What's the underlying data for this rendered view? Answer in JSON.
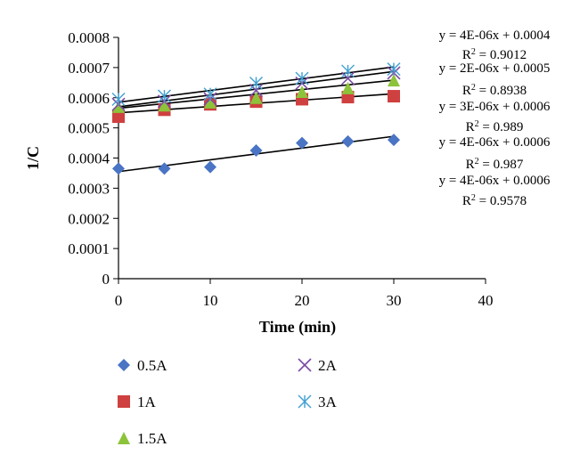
{
  "chart_data": {
    "type": "scatter",
    "xlabel": "Time (min)",
    "ylabel": "1/C",
    "xlim": [
      0,
      40
    ],
    "ylim": [
      0,
      0.0008
    ],
    "x_ticks": [
      "0",
      "10",
      "20",
      "30",
      "40"
    ],
    "y_ticks": [
      "0",
      "0.0001",
      "0.0002",
      "0.0003",
      "0.0004",
      "0.0005",
      "0.0006",
      "0.0007",
      "0.0008"
    ],
    "grid": false,
    "legend_position": "bottom",
    "x": [
      0,
      5,
      10,
      15,
      20,
      25,
      30
    ],
    "series": [
      {
        "name": "0.5A",
        "marker": "diamond",
        "color": "#4a74c4",
        "values": [
          0.000365,
          0.000365,
          0.00037,
          0.000425,
          0.00045,
          0.000455,
          0.00046
        ],
        "trendline": {
          "intercept": 0.000355,
          "slope": 3.9e-06
        }
      },
      {
        "name": "1A",
        "marker": "square",
        "color": "#cf4040",
        "values": [
          0.000537,
          0.00056,
          0.000578,
          0.000587,
          0.000595,
          0.000602,
          0.000605
        ],
        "trendline": {
          "intercept": 0.00055,
          "slope": 2.1e-06
        }
      },
      {
        "name": "1.5A",
        "marker": "triangle",
        "color": "#8cc33a",
        "values": [
          0.00057,
          0.000575,
          0.000585,
          0.0006,
          0.00062,
          0.000632,
          0.000658
        ],
        "trendline": {
          "intercept": 0.000565,
          "slope": 3.1e-06
        }
      },
      {
        "name": "2A",
        "marker": "x",
        "color": "#7b4aa3",
        "values": [
          0.000578,
          0.000588,
          0.000596,
          0.000624,
          0.000648,
          0.000664,
          0.000682
        ],
        "trendline": {
          "intercept": 0.00057,
          "slope": 3.9e-06
        }
      },
      {
        "name": "3A",
        "marker": "star",
        "color": "#3f9fd1",
        "values": [
          0.000595,
          0.000605,
          0.000612,
          0.000648,
          0.000664,
          0.000688,
          0.000695
        ],
        "trendline": {
          "intercept": 0.000585,
          "slope": 3.9e-06
        }
      }
    ],
    "annotations": [
      {
        "eq": "y = 4E-06x + 0.0004",
        "r2_prefix": "R",
        "r2_sup": "2",
        "r2_value": " = 0.9012"
      },
      {
        "eq": "y = 2E-06x + 0.0005",
        "r2_prefix": "R",
        "r2_sup": "2",
        "r2_value": " = 0.8938"
      },
      {
        "eq": "y = 3E-06x + 0.0006",
        "r2_prefix": "R",
        "r2_sup": "2",
        "r2_value": " = 0.989"
      },
      {
        "eq": "y = 4E-06x + 0.0006",
        "r2_prefix": "R",
        "r2_sup": "2",
        "r2_value": " = 0.987"
      },
      {
        "eq": "y = 4E-06x + 0.0006",
        "r2_prefix": "R",
        "r2_sup": "2",
        "r2_value": " = 0.9578"
      }
    ]
  }
}
